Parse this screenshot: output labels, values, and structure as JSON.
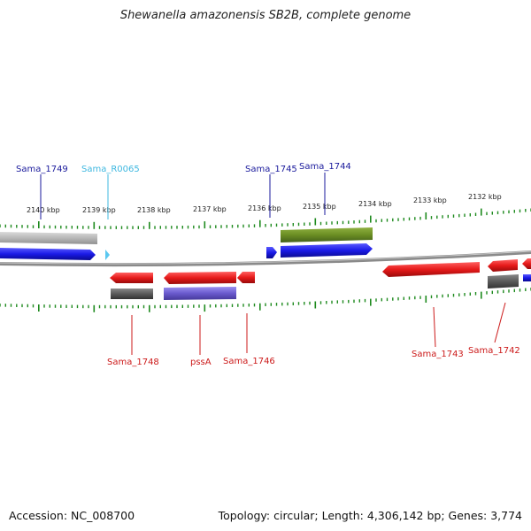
{
  "title": "Shewanella amazonensis SB2B, complete genome",
  "footer": {
    "accession": "Accession: NC_008700",
    "topology": "Topology: circular; Length: 4,306,142 bp; Genes: 3,774"
  },
  "colors": {
    "backbone": "#8a8a8a",
    "ticks": "#1e8a1e",
    "blue_gene": "#1a1ae6",
    "red_gene": "#e61a1a",
    "olive_gene": "#6b8e23",
    "gray_gene": "#b8b8b8",
    "dark_gray_gene": "#5a5a5a",
    "purple_gene": "#6a5acd",
    "light_blue": "#5bc8f0",
    "label_blue": "#1a1a9c",
    "label_cyan": "#3fb8e0",
    "label_red": "#cc1a1a"
  },
  "scale_labels": [
    "2140 kbp",
    "2139 kbp",
    "2138 kbp",
    "2137 kbp",
    "2136 kbp",
    "2135 kbp",
    "2134 kbp",
    "2133 kbp",
    "2132 kbp"
  ],
  "gene_labels": {
    "sama_1749": "Sama_1749",
    "sama_r0065": "Sama_R0065",
    "sama_1745": "Sama_1745",
    "sama_1744": "Sama_1744",
    "sama_1748": "Sama_1748",
    "pssa": "pssA",
    "sama_1746": "Sama_1746",
    "sama_1743": "Sama_1743",
    "sama_1742": "Sama_1742"
  }
}
